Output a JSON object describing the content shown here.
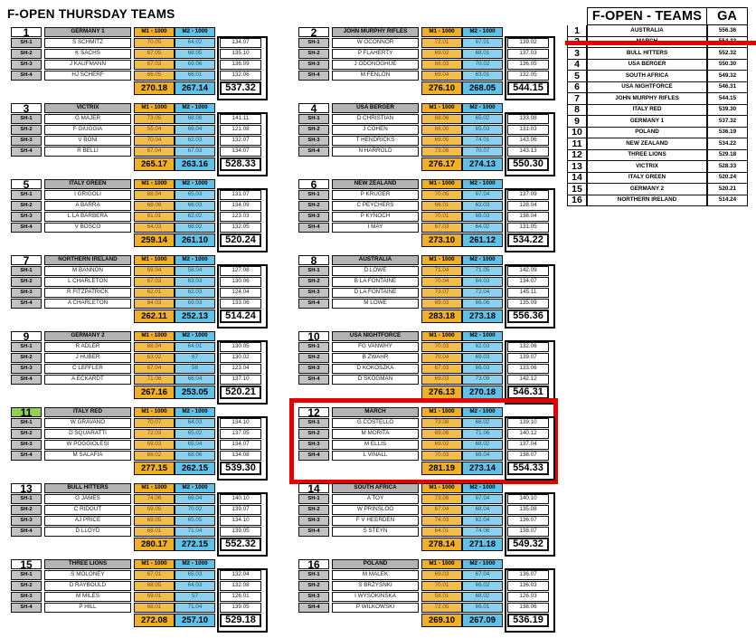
{
  "title": "F-OPEN THURSDAY TEAMS",
  "columns": {
    "m1": "M1 - 1000",
    "m2": "M2 - 1000"
  },
  "colors": {
    "m1_header": "#EFAF26",
    "m1_cell": "#F2BE4B",
    "m2_header": "#5FC0E8",
    "m2_cell": "#8AD0EF",
    "gray_header": "#B3B3B3",
    "green_highlight": "#92D050",
    "red_highlight": "#E60000"
  },
  "teams": [
    {
      "num": "1",
      "name": "GERMANY 1",
      "green_num": false,
      "red_box": false,
      "shooters": [
        {
          "id": "SH-1",
          "name": "S SCHMITZ",
          "m1": "70.05",
          "m2": "64.02",
          "total": "134.07"
        },
        {
          "id": "SH-2",
          "name": "K SACHS",
          "m1": "67.05",
          "m2": "68.05",
          "total": "135.10"
        },
        {
          "id": "SH-3",
          "name": "J KAUFMANN",
          "m1": "67.03",
          "m2": "69.06",
          "total": "136.09"
        },
        {
          "id": "SH-4",
          "name": "HJ SCHERF",
          "m1": "66.05",
          "m2": "66.01",
          "total": "132.06"
        }
      ],
      "m1_total": "270.18",
      "m2_total": "267.14",
      "grand_total": "537.32"
    },
    {
      "num": "2",
      "name": "JOHN MURPHY RIFLES",
      "green_num": false,
      "red_box": false,
      "shooters": [
        {
          "id": "SH-1",
          "name": "W OCONNOR",
          "m1": "72.01",
          "m2": "67.01",
          "total": "139.02"
        },
        {
          "id": "SH-2",
          "name": "P FLAHERTY",
          "m1": "69.02",
          "m2": "68.01",
          "total": "137.03"
        },
        {
          "id": "SH-3",
          "name": "J ODONOGHUE",
          "m1": "66.03",
          "m2": "70.02",
          "total": "136.05"
        },
        {
          "id": "SH-4",
          "name": "M FENLON",
          "m1": "69.04",
          "m2": "63.01",
          "total": "132.05"
        }
      ],
      "m1_total": "276.10",
      "m2_total": "268.05",
      "grand_total": "544.15"
    },
    {
      "num": "3",
      "name": "VICTRIX",
      "green_num": false,
      "red_box": false,
      "shooters": [
        {
          "id": "SH-1",
          "name": "G MAJER",
          "m1": "73.05",
          "m2": "68.06",
          "total": "141.11"
        },
        {
          "id": "SH-2",
          "name": "F GIUGGIA",
          "m1": "55.04",
          "m2": "66.04",
          "total": "121.08"
        },
        {
          "id": "SH-3",
          "name": "V BONI",
          "m1": "70.04",
          "m2": "62.03",
          "total": "132.07"
        },
        {
          "id": "SH-4",
          "name": "R BELLI",
          "m1": "67.04",
          "m2": "67.03",
          "total": "134.07"
        }
      ],
      "m1_total": "265.17",
      "m2_total": "263.16",
      "grand_total": "528.33"
    },
    {
      "num": "4",
      "name": "USA BERGER",
      "green_num": false,
      "red_box": false,
      "shooters": [
        {
          "id": "SH-1",
          "name": "D CHRISTIAN",
          "m1": "68.06",
          "m2": "65.02",
          "total": "133.08"
        },
        {
          "id": "SH-2",
          "name": "J COHEN",
          "m1": "66.00",
          "m2": "65.03",
          "total": "131.03"
        },
        {
          "id": "SH-3",
          "name": "T HENDRICKS",
          "m1": "69.05",
          "m2": "74.01",
          "total": "143.06"
        },
        {
          "id": "SH-4",
          "name": "N HARROLD",
          "m1": "73.06",
          "m2": "70.07",
          "total": "143.13"
        }
      ],
      "m1_total": "276.17",
      "m2_total": "274.13",
      "grand_total": "550.30"
    },
    {
      "num": "5",
      "name": "ITALY GREEN",
      "green_num": false,
      "red_box": false,
      "shooters": [
        {
          "id": "SH-1",
          "name": "I GRIGOLI",
          "m1": "66.04",
          "m2": "65.03",
          "total": "131.07"
        },
        {
          "id": "SH-2",
          "name": "A BARRA",
          "m1": "68.06",
          "m2": "66.03",
          "total": "134.09"
        },
        {
          "id": "SH-3",
          "name": "L LA BARBERA",
          "m1": "61.01",
          "m2": "62.02",
          "total": "123.03"
        },
        {
          "id": "SH-4",
          "name": "V BOSCO",
          "m1": "64.03",
          "m2": "68.02",
          "total": "132.05"
        }
      ],
      "m1_total": "259.14",
      "m2_total": "261.10",
      "grand_total": "520.24"
    },
    {
      "num": "6",
      "name": "NEW ZEALAND",
      "green_num": false,
      "red_box": false,
      "shooters": [
        {
          "id": "SH-1",
          "name": "P KRUGER",
          "m1": "70.05",
          "m2": "67.04",
          "total": "137.09"
        },
        {
          "id": "SH-2",
          "name": "C PEYCHERS",
          "m1": "66.01",
          "m2": "62.03",
          "total": "128.04"
        },
        {
          "id": "SH-3",
          "name": "P KYNOCH",
          "m1": "70.01",
          "m2": "68.03",
          "total": "138.04"
        },
        {
          "id": "SH-4",
          "name": "I MAY",
          "m1": "67.03",
          "m2": "64.02",
          "total": "131.05"
        }
      ],
      "m1_total": "273.10",
      "m2_total": "261.12",
      "grand_total": "534.22"
    },
    {
      "num": "7",
      "name": "NORTHERN IRELAND",
      "green_num": false,
      "red_box": false,
      "shooters": [
        {
          "id": "SH-1",
          "name": "M BANNON",
          "m1": "69.04",
          "m2": "58.04",
          "total": "127.08"
        },
        {
          "id": "SH-2",
          "name": "L CHARLETON",
          "m1": "67.03",
          "m2": "63.03",
          "total": "130.06"
        },
        {
          "id": "SH-3",
          "name": "R FITZPATRICK",
          "m1": "62.01",
          "m2": "62.03",
          "total": "124.04"
        },
        {
          "id": "SH-4",
          "name": "A CHARLETON",
          "m1": "64.03",
          "m2": "69.03",
          "total": "133.06"
        }
      ],
      "m1_total": "262.11",
      "m2_total": "252.13",
      "grand_total": "514.24"
    },
    {
      "num": "8",
      "name": "AUSTRALIA",
      "green_num": false,
      "red_box": false,
      "shooters": [
        {
          "id": "SH-1",
          "name": "D LOWE",
          "m1": "71.04",
          "m2": "71.05",
          "total": "142.09"
        },
        {
          "id": "SH-2",
          "name": "B LA FONTAINE",
          "m1": "70.04",
          "m2": "64.03",
          "total": "134.07"
        },
        {
          "id": "SH-3",
          "name": "D LA FONTAINE",
          "m1": "73.07",
          "m2": "72.04",
          "total": "145.11"
        },
        {
          "id": "SH-4",
          "name": "M LOWE",
          "m1": "69.03",
          "m2": "66.06",
          "total": "135.09"
        }
      ],
      "m1_total": "283.18",
      "m2_total": "273.18",
      "grand_total": "556.36"
    },
    {
      "num": "9",
      "name": "GERMANY 2",
      "green_num": false,
      "red_box": false,
      "shooters": [
        {
          "id": "SH-1",
          "name": "R ADLER",
          "m1": "66.04",
          "m2": "64.01",
          "total": "130.05"
        },
        {
          "id": "SH-2",
          "name": "J HUBER",
          "m1": "63.02",
          "m2": "67",
          "total": "130.02"
        },
        {
          "id": "SH-3",
          "name": "C LEFFLER",
          "m1": "67.04",
          "m2": "56",
          "total": "123.04"
        },
        {
          "id": "SH-4",
          "name": "A ECKARDT",
          "m1": "71.06",
          "m2": "66.04",
          "total": "137.10"
        }
      ],
      "m1_total": "267.16",
      "m2_total": "253.05",
      "grand_total": "520.21"
    },
    {
      "num": "10",
      "name": "USA NIGHTFORCE",
      "green_num": false,
      "red_box": false,
      "shooters": [
        {
          "id": "SH-1",
          "name": "FG VANWHY",
          "m1": "70.03",
          "m2": "62.03",
          "total": "132.06"
        },
        {
          "id": "SH-2",
          "name": "B ZWAHR",
          "m1": "70.04",
          "m2": "69.03",
          "total": "139.07"
        },
        {
          "id": "SH-3",
          "name": "D KOKOSZKA",
          "m1": "67.03",
          "m2": "66.03",
          "total": "133.06"
        },
        {
          "id": "SH-4",
          "name": "D SKOGMAN",
          "m1": "69.03",
          "m2": "73.09",
          "total": "142.12"
        }
      ],
      "m1_total": "276.13",
      "m2_total": "270.18",
      "grand_total": "546.31"
    },
    {
      "num": "11",
      "name": "ITALY RED",
      "green_num": true,
      "red_box": false,
      "shooters": [
        {
          "id": "SH-1",
          "name": "W GRAVANO",
          "m1": "70.07",
          "m2": "64.03",
          "total": "134.10"
        },
        {
          "id": "SH-2",
          "name": "D SQUARATTI",
          "m1": "72.03",
          "m2": "65.02",
          "total": "137.05"
        },
        {
          "id": "SH-3",
          "name": "W POGGIOLESI",
          "m1": "69.03",
          "m2": "65.04",
          "total": "134.07"
        },
        {
          "id": "SH-4",
          "name": "M SALAFIA",
          "m1": "66.02",
          "m2": "68.06",
          "total": "134.08"
        }
      ],
      "m1_total": "277.15",
      "m2_total": "262.15",
      "grand_total": "539.30"
    },
    {
      "num": "12",
      "name": "MARCH",
      "green_num": false,
      "red_box": true,
      "shooters": [
        {
          "id": "SH-1",
          "name": "G COSTELLO",
          "m1": "73.08",
          "m2": "66.02",
          "total": "139.10"
        },
        {
          "id": "SH-2",
          "name": "M MORITA",
          "m1": "69.06",
          "m2": "71.06",
          "total": "140.12"
        },
        {
          "id": "SH-3",
          "name": "M ELLIS",
          "m1": "69.02",
          "m2": "68.02",
          "total": "137.04"
        },
        {
          "id": "SH-4",
          "name": "L VINALL",
          "m1": "70.03",
          "m2": "68.04",
          "total": "138.07"
        }
      ],
      "m1_total": "281.19",
      "m2_total": "273.14",
      "grand_total": "554.33"
    },
    {
      "num": "13",
      "name": "BULL HITTERS",
      "green_num": false,
      "red_box": false,
      "shooters": [
        {
          "id": "SH-1",
          "name": "G JAMES",
          "m1": "74.06",
          "m2": "66.04",
          "total": "140.10"
        },
        {
          "id": "SH-2",
          "name": "C RIDOUT",
          "m1": "69.05",
          "m2": "70.02",
          "total": "139.07"
        },
        {
          "id": "SH-3",
          "name": "AJ PRICE",
          "m1": "69.05",
          "m2": "65.05",
          "total": "134.10"
        },
        {
          "id": "SH-4",
          "name": "D LLOYD",
          "m1": "68.01",
          "m2": "71.04",
          "total": "139.05"
        }
      ],
      "m1_total": "280.17",
      "m2_total": "272.15",
      "grand_total": "552.32"
    },
    {
      "num": "14",
      "name": "SOUTH AFRICA",
      "green_num": false,
      "red_box": false,
      "shooters": [
        {
          "id": "SH-1",
          "name": "A TOY",
          "m1": "73.06",
          "m2": "67.04",
          "total": "140.10"
        },
        {
          "id": "SH-2",
          "name": "W PRINSLOO",
          "m1": "67.04",
          "m2": "68.04",
          "total": "135.08"
        },
        {
          "id": "SH-3",
          "name": "F V HEERDEN",
          "m1": "74.03",
          "m2": "62.04",
          "total": "136.07"
        },
        {
          "id": "SH-4",
          "name": "S STEYN",
          "m1": "64.01",
          "m2": "74.06",
          "total": "138.07"
        }
      ],
      "m1_total": "278.14",
      "m2_total": "271.18",
      "grand_total": "549.32"
    },
    {
      "num": "15",
      "name": "THREE LIONS",
      "green_num": false,
      "red_box": false,
      "shooters": [
        {
          "id": "SH-1",
          "name": "S MOLONEY",
          "m1": "67.01",
          "m2": "65.03",
          "total": "132.04"
        },
        {
          "id": "SH-2",
          "name": "D RAYBOULD",
          "m1": "68.05",
          "m2": "64.03",
          "total": "132.08"
        },
        {
          "id": "SH-3",
          "name": "M MILES",
          "m1": "69.01",
          "m2": "57",
          "total": "126.01"
        },
        {
          "id": "SH-4",
          "name": "P HILL",
          "m1": "68.01",
          "m2": "71.04",
          "total": "139.05"
        }
      ],
      "m1_total": "272.08",
      "m2_total": "257.10",
      "grand_total": "529.18"
    },
    {
      "num": "16",
      "name": "POLAND",
      "green_num": false,
      "red_box": false,
      "shooters": [
        {
          "id": "SH-1",
          "name": "M MALEK",
          "m1": "69.03",
          "m2": "67.04",
          "total": "136.07"
        },
        {
          "id": "SH-2",
          "name": "S BRZYSNKI",
          "m1": "70.01",
          "m2": "66.02",
          "total": "136.03"
        },
        {
          "id": "SH-3",
          "name": "I WYSOKINSKA",
          "m1": "58.01",
          "m2": "68.02",
          "total": "126.03"
        },
        {
          "id": "SH-4",
          "name": "P WILKOWSKI",
          "m1": "72.05",
          "m2": "66.01",
          "total": "138.06"
        }
      ],
      "m1_total": "269.10",
      "m2_total": "267.09",
      "grand_total": "536.19"
    }
  ],
  "ranking": {
    "title": "F-OPEN - TEAMS",
    "ga_label": "GA",
    "rows": [
      {
        "rank": "1",
        "team": "AUSTRALIA",
        "ga": "556.36",
        "strike": false
      },
      {
        "rank": "2",
        "team": "MARCH",
        "ga": "554.33",
        "strike": true
      },
      {
        "rank": "3",
        "team": "BULL HITTERS",
        "ga": "552.32",
        "strike": false
      },
      {
        "rank": "4",
        "team": "USA BERGER",
        "ga": "550.30",
        "strike": false
      },
      {
        "rank": "5",
        "team": "SOUTH AFRICA",
        "ga": "549.32",
        "strike": false
      },
      {
        "rank": "6",
        "team": "USA NIGHTFORCE",
        "ga": "546.31",
        "strike": false
      },
      {
        "rank": "7",
        "team": "JOHN MURPHY RIFLES",
        "ga": "544.15",
        "strike": false
      },
      {
        "rank": "8",
        "team": "ITALY RED",
        "ga": "539.30",
        "strike": false
      },
      {
        "rank": "9",
        "team": "GERMANY 1",
        "ga": "537.32",
        "strike": false
      },
      {
        "rank": "10",
        "team": "POLAND",
        "ga": "536.19",
        "strike": false
      },
      {
        "rank": "11",
        "team": "NEW ZEALAND",
        "ga": "534.22",
        "strike": false
      },
      {
        "rank": "12",
        "team": "THREE LIONS",
        "ga": "529.18",
        "strike": false
      },
      {
        "rank": "13",
        "team": "VICTRIX",
        "ga": "528.33",
        "strike": false
      },
      {
        "rank": "14",
        "team": "ITALY GREEN",
        "ga": "520.24",
        "strike": false
      },
      {
        "rank": "15",
        "team": "GERMANY 2",
        "ga": "520.21",
        "strike": false
      },
      {
        "rank": "16",
        "team": "NORTHERN IRELAND",
        "ga": "514.24",
        "strike": false
      }
    ]
  }
}
